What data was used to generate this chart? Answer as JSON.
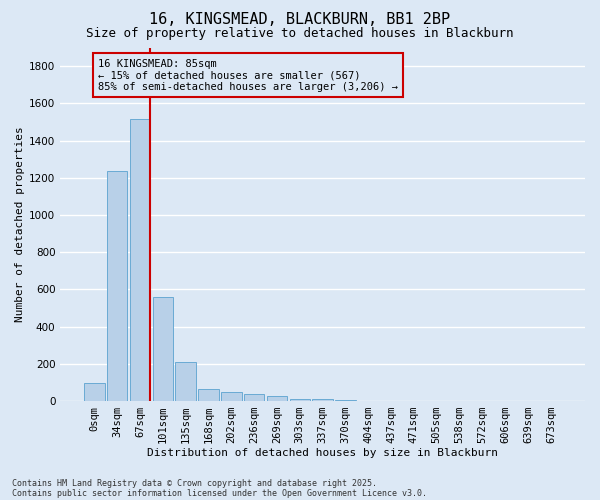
{
  "title": "16, KINGSMEAD, BLACKBURN, BB1 2BP",
  "subtitle": "Size of property relative to detached houses in Blackburn",
  "xlabel": "Distribution of detached houses by size in Blackburn",
  "ylabel": "Number of detached properties",
  "footnote1": "Contains HM Land Registry data © Crown copyright and database right 2025.",
  "footnote2": "Contains public sector information licensed under the Open Government Licence v3.0.",
  "categories": [
    "0sqm",
    "34sqm",
    "67sqm",
    "101sqm",
    "135sqm",
    "168sqm",
    "202sqm",
    "236sqm",
    "269sqm",
    "303sqm",
    "337sqm",
    "370sqm",
    "404sqm",
    "437sqm",
    "471sqm",
    "505sqm",
    "538sqm",
    "572sqm",
    "606sqm",
    "639sqm",
    "673sqm"
  ],
  "values": [
    95,
    1235,
    1515,
    560,
    210,
    65,
    48,
    35,
    28,
    10,
    10,
    5,
    2,
    0,
    0,
    0,
    0,
    0,
    0,
    0,
    0
  ],
  "bar_color": "#b8d0e8",
  "bar_edgecolor": "#6aaad4",
  "ylim": [
    0,
    1900
  ],
  "yticks": [
    0,
    200,
    400,
    600,
    800,
    1000,
    1200,
    1400,
    1600,
    1800
  ],
  "vline_color": "#cc0000",
  "annotation_text": "16 KINGSMEAD: 85sqm\n← 15% of detached houses are smaller (567)\n85% of semi-detached houses are larger (3,206) →",
  "annotation_box_color": "#cc0000",
  "background_color": "#dce8f5",
  "grid_color": "#ffffff",
  "title_fontsize": 11,
  "subtitle_fontsize": 9,
  "axis_label_fontsize": 8,
  "tick_fontsize": 7.5,
  "footnote_fontsize": 6,
  "annotation_fontsize": 7.5
}
